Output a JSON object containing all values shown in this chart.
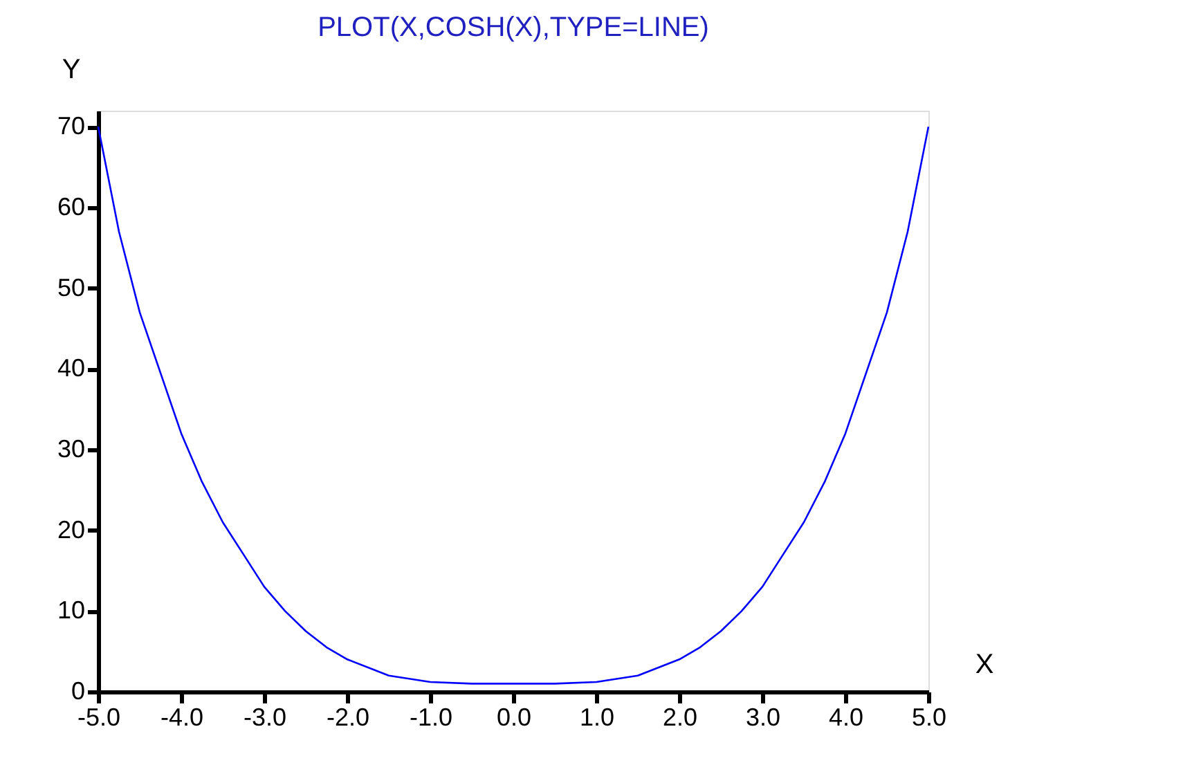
{
  "chart_data": {
    "type": "line",
    "title": "PLOT(X,COSH(X),TYPE=LINE)",
    "xlabel": "X",
    "ylabel": "Y",
    "x": [
      -5,
      -4.75,
      -4.5,
      -4,
      -3.75,
      -3.5,
      -3.25,
      -3,
      -2.75,
      -2.5,
      -2.25,
      -2,
      -1.5,
      -1,
      -0.5,
      0,
      0.5,
      1,
      1.5,
      2,
      2.25,
      2.5,
      2.75,
      3,
      3.25,
      3.5,
      3.75,
      4,
      4.5,
      4.75,
      5
    ],
    "series": [
      {
        "color": "#0000ff",
        "values": [
          70,
          57,
          47,
          32,
          26,
          21,
          17,
          13,
          10,
          7.5,
          5.5,
          4,
          2,
          1.2,
          1,
          1,
          1,
          1.2,
          2,
          4,
          5.5,
          7.5,
          10,
          13,
          17,
          21,
          26,
          32,
          47,
          57,
          70
        ]
      }
    ],
    "xlim": [
      -5,
      5
    ],
    "ylim": [
      0,
      72
    ],
    "xticks": [
      {
        "value": -5,
        "label": "-5.0"
      },
      {
        "value": -4,
        "label": "-4.0"
      },
      {
        "value": -3,
        "label": "-3.0"
      },
      {
        "value": -2,
        "label": "-2.0"
      },
      {
        "value": -1,
        "label": "-1.0"
      },
      {
        "value": 0,
        "label": "0.0"
      },
      {
        "value": 1,
        "label": "1.0"
      },
      {
        "value": 2,
        "label": "2.0"
      },
      {
        "value": 3,
        "label": "3.0"
      },
      {
        "value": 4,
        "label": "4.0"
      },
      {
        "value": 5,
        "label": "5.0"
      }
    ],
    "yticks": [
      0,
      10,
      20,
      30,
      40,
      50,
      60,
      70
    ],
    "grid": false,
    "legend": false,
    "marker": "none",
    "line_style": "solid"
  }
}
